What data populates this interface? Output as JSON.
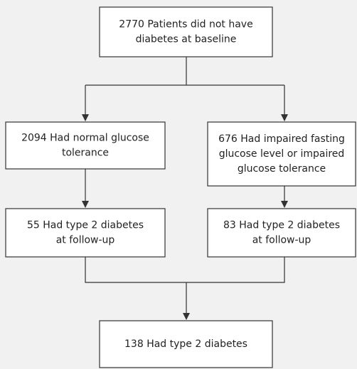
{
  "nodes": [
    {
      "lines": [
        "2770 Patients did not have",
        "diabetes at baseline"
      ]
    },
    {
      "lines": [
        "2094 Had normal glucose",
        "tolerance"
      ]
    },
    {
      "lines": [
        "676 Had impaired fasting",
        "glucose level or impaired",
        "glucose tolerance"
      ]
    },
    {
      "lines": [
        "55 Had type 2 diabetes",
        "at follow-up"
      ]
    },
    {
      "lines": [
        "83 Had type 2 diabetes",
        "at follow-up"
      ]
    },
    {
      "lines": [
        "138 Had type 2 diabetes"
      ]
    }
  ]
}
